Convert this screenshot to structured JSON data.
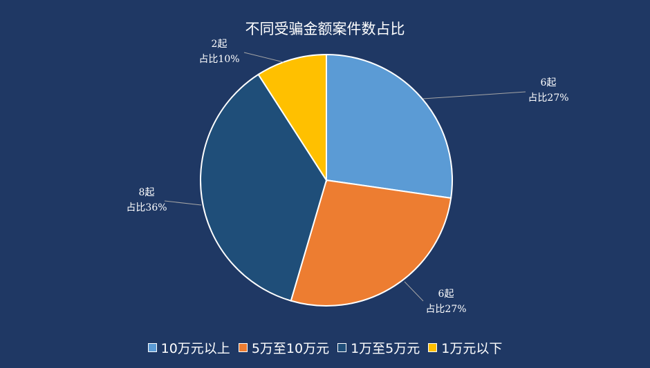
{
  "chart_data": {
    "type": "pie",
    "title": "不同受骗金额案件数占比",
    "categories": [
      "10万元以上",
      "5万至10万元",
      "1万至5万元",
      "1万元以下"
    ],
    "values": [
      6,
      6,
      8,
      2
    ],
    "percentages": [
      27,
      27,
      36,
      10
    ],
    "colors": [
      "#5b9bd5",
      "#ed7d31",
      "#1f4e79",
      "#ffc000"
    ],
    "data_labels": [
      {
        "count": "6起",
        "share": "占比27%"
      },
      {
        "count": "6起",
        "share": "占比27%"
      },
      {
        "count": "8起",
        "share": "占比36%"
      },
      {
        "count": "2起",
        "share": "占比10%"
      }
    ],
    "legend_position": "bottom"
  }
}
